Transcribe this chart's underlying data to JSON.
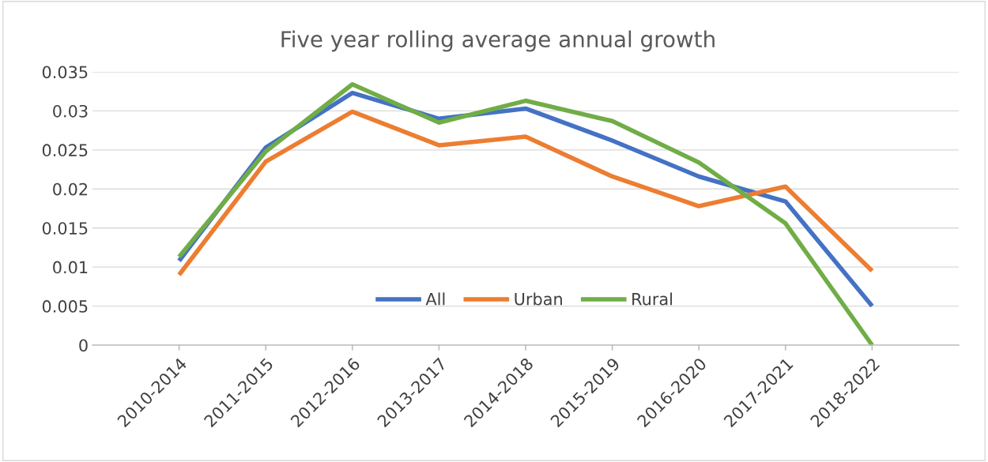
{
  "chart_data": {
    "type": "line",
    "title": "Five year rolling average annual growth",
    "categories": [
      "2010-2014",
      "2011-2015",
      "2012-2016",
      "2013-2017",
      "2014-2018",
      "2015-2019",
      "2016-2020",
      "2017-2021",
      "2018-2022"
    ],
    "series": [
      {
        "name": "All",
        "color": "#4472c4",
        "values": [
          0.0108,
          0.0253,
          0.0323,
          0.029,
          0.0303,
          0.0262,
          0.0216,
          0.0184,
          0.005
        ]
      },
      {
        "name": "Urban",
        "color": "#ed7d31",
        "values": [
          0.009,
          0.0235,
          0.0299,
          0.0256,
          0.0267,
          0.0216,
          0.0178,
          0.0203,
          0.0095
        ]
      },
      {
        "name": "Rural",
        "color": "#70ad47",
        "values": [
          0.0113,
          0.0248,
          0.0334,
          0.0285,
          0.0313,
          0.0287,
          0.0234,
          0.0156,
          0
        ]
      }
    ],
    "ylim": [
      0,
      0.035
    ],
    "yticks": [
      0,
      0.005,
      0.01,
      0.015,
      0.02,
      0.025,
      0.03,
      0.035
    ],
    "grid": "y",
    "legend": "bottom",
    "marker": "none",
    "line_style": "solid"
  }
}
